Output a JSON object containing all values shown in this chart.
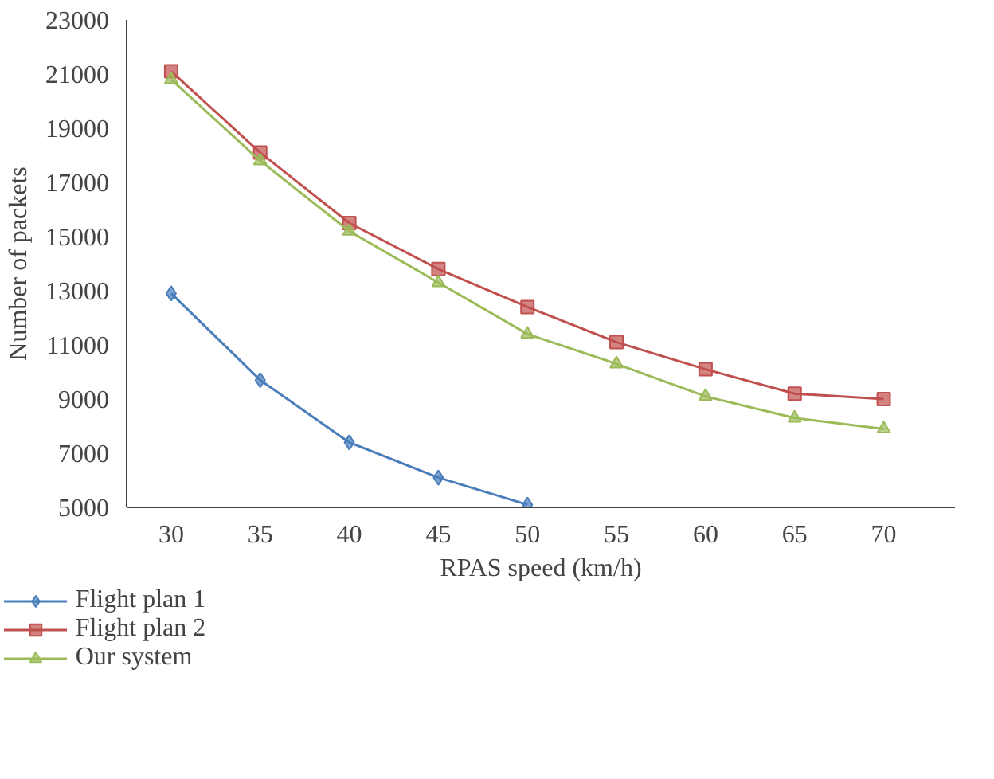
{
  "chart_data": {
    "type": "line",
    "xlabel": "RPAS speed (km/h)",
    "ylabel": "Number of packets",
    "categories": [
      "30",
      "35",
      "40",
      "45",
      "50",
      "55",
      "60",
      "65",
      "70"
    ],
    "ylim": [
      5000,
      23000
    ],
    "yticks": [
      5000,
      7000,
      9000,
      11000,
      13000,
      15000,
      17000,
      19000,
      21000,
      23000
    ],
    "grid": false,
    "legend": "bottom",
    "series": [
      {
        "name": "Flight plan 1",
        "color": "#4a7ebb",
        "marker": "diamond",
        "values": [
          12900,
          9700,
          7400,
          6100,
          5100,
          null,
          null,
          null,
          null
        ]
      },
      {
        "name": "Flight plan 2",
        "color": "#c0504d",
        "marker": "square",
        "values": [
          21100,
          18100,
          15500,
          13800,
          12400,
          11100,
          10100,
          9200,
          9000
        ]
      },
      {
        "name": "Our system",
        "color": "#9bbb59",
        "marker": "triangle",
        "values": [
          20800,
          17800,
          15200,
          13300,
          11400,
          10300,
          9100,
          8300,
          7900
        ]
      }
    ]
  }
}
